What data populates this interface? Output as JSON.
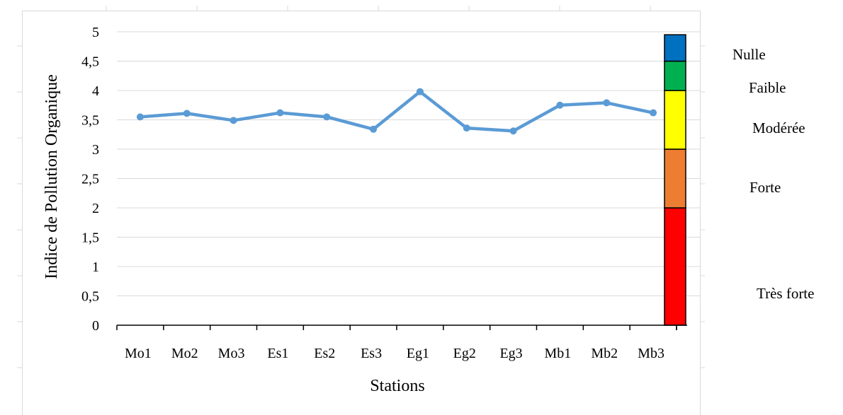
{
  "chart_data": {
    "type": "line",
    "title": "",
    "xlabel": "Stations",
    "ylabel": "Indice de Pollution Organique",
    "categories": [
      "Mo1",
      "Mo2",
      "Mo3",
      "Es1",
      "Es2",
      "Es3",
      "Eg1",
      "Eg2",
      "Eg3",
      "Mb1",
      "Mb2",
      "Mb3"
    ],
    "series": [
      {
        "values": [
          3.55,
          3.61,
          3.49,
          3.62,
          3.55,
          3.34,
          3.98,
          3.36,
          3.31,
          3.75,
          3.79,
          3.62
        ],
        "color": "#5b9bd5"
      }
    ],
    "ylim": [
      0,
      5
    ],
    "yticks": [
      "0",
      "0,5",
      "1",
      "1,5",
      "2",
      "2,5",
      "3",
      "3,5",
      "4",
      "4,5",
      "5"
    ],
    "grid": true,
    "classes": [
      {
        "label": "Très forte",
        "from": 0,
        "to": 2,
        "color": "#ff0000"
      },
      {
        "label": "Forte",
        "from": 2,
        "to": 3,
        "color": "#ed7d31"
      },
      {
        "label": "Modérée",
        "from": 3,
        "to": 4,
        "color": "#ffff00"
      },
      {
        "label": "Faible",
        "from": 4,
        "to": 4.5,
        "color": "#00b050"
      },
      {
        "label": "Nulle",
        "from": 4.5,
        "to": 4.95,
        "color": "#0070c0"
      }
    ]
  }
}
